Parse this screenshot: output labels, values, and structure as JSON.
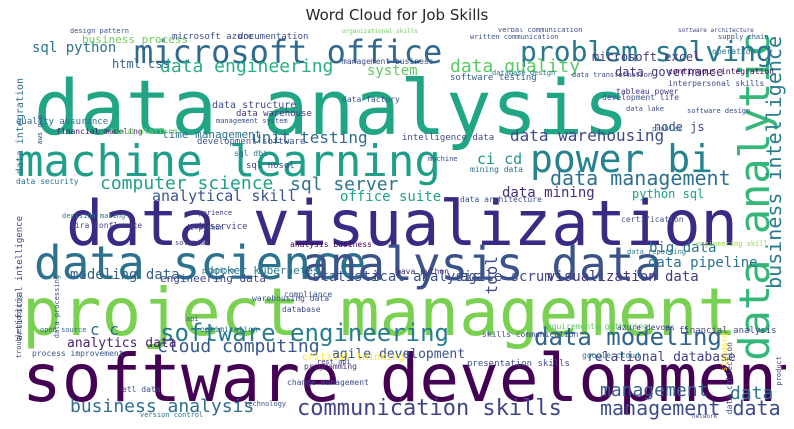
{
  "chart_data": {
    "type": "wordcloud",
    "title": "Word Cloud for Job Skills",
    "words": [
      {
        "text": "data analysis",
        "color": "#21a685"
      },
      {
        "text": "project management",
        "color": "#7ad151"
      },
      {
        "text": "software development",
        "color": "#440154"
      },
      {
        "text": "data visualization",
        "color": "#3b2a84"
      },
      {
        "text": "machine learning",
        "color": "#1f9e89"
      },
      {
        "text": "data science",
        "color": "#2c728e"
      },
      {
        "text": "analysis data",
        "color": "#3b528b"
      },
      {
        "text": "microsoft office",
        "color": "#31688e"
      },
      {
        "text": "power bi",
        "color": "#26828e"
      },
      {
        "text": "data analytic",
        "color": "#35b779"
      },
      {
        "text": "business intelligence",
        "color": "#287d8e"
      },
      {
        "text": "problem solving",
        "color": "#2a788e"
      },
      {
        "text": "software engineering",
        "color": "#287c8e"
      },
      {
        "text": "data modeling",
        "color": "#32648e"
      },
      {
        "text": "communication skills",
        "color": "#404588"
      },
      {
        "text": "data management",
        "color": "#2d708e"
      },
      {
        "text": "data engineering",
        "color": "#29af7f"
      },
      {
        "text": "computer science",
        "color": "#1fa188"
      },
      {
        "text": "sql server",
        "color": "#2b748e"
      },
      {
        "text": "business analysis",
        "color": "#2e6e8e"
      },
      {
        "text": "cloud computing",
        "color": "#38588c"
      },
      {
        "text": "management data",
        "color": "#3e4c8a"
      },
      {
        "text": "data quality",
        "color": "#5cc863"
      },
      {
        "text": "data warehousing",
        "color": "#3e4a89"
      },
      {
        "text": "unit testing",
        "color": "#2f6b8e"
      },
      {
        "text": "analytical skill",
        "color": "#3a548c"
      },
      {
        "text": "ci cd",
        "color": "#1f958b"
      },
      {
        "text": "data mining",
        "color": "#472d7b"
      },
      {
        "text": "office suite",
        "color": "#20a386"
      },
      {
        "text": "big data",
        "color": "#2a788e"
      },
      {
        "text": "data pipeline",
        "color": "#2c718e"
      },
      {
        "text": "modeling data",
        "color": "#33628d"
      },
      {
        "text": "statistical analysis",
        "color": "#3b528b"
      },
      {
        "text": "agile scrum",
        "color": "#3f4889"
      },
      {
        "text": "visualization data",
        "color": "#443a83"
      },
      {
        "text": "sql python",
        "color": "#2c728e"
      },
      {
        "text": "data governance",
        "color": "#46337f"
      },
      {
        "text": "data structure",
        "color": "#3e4989"
      },
      {
        "text": "docker kubernetes",
        "color": "#2a788e"
      },
      {
        "text": "python sql",
        "color": "#1fa088"
      },
      {
        "text": "relational database",
        "color": "#424186"
      },
      {
        "text": "agile development",
        "color": "#3b528b"
      },
      {
        "text": "analytics data",
        "color": "#481f70"
      },
      {
        "text": "c c",
        "color": "#2e6f8e"
      },
      {
        "text": "tool",
        "color": "#3d4d8a"
      },
      {
        "text": "node js",
        "color": "#3e4a89"
      },
      {
        "text": "html css",
        "color": "#33638d"
      },
      {
        "text": "time management",
        "color": "#2c738e"
      },
      {
        "text": "system",
        "color": "#5ec962"
      },
      {
        "text": "microsoft excel",
        "color": "#443983"
      },
      {
        "text": "engineering data",
        "color": "#3e4a89"
      },
      {
        "text": "management",
        "color": "#365c8d"
      },
      {
        "text": "data",
        "color": "#2a768e"
      },
      {
        "text": "business process",
        "color": "#6ccd5a"
      },
      {
        "text": "data integration",
        "color": "#2e6f8e"
      },
      {
        "text": "microsoft azure",
        "color": "#3d4e8a"
      },
      {
        "text": "documentation",
        "color": "#3e4c8a"
      },
      {
        "text": "quality assurance",
        "color": "#2d708e"
      },
      {
        "text": "sql nosql",
        "color": "#404688"
      },
      {
        "text": "web service",
        "color": "#433e85"
      },
      {
        "text": "data factory",
        "color": "#3a548c"
      },
      {
        "text": "data warehouse",
        "color": "#443983"
      },
      {
        "text": "jira confluence",
        "color": "#404588"
      },
      {
        "text": "artificial intelligence",
        "color": "#3f4788"
      },
      {
        "text": "sql dbi",
        "color": "#2c718e"
      },
      {
        "text": "software testing",
        "color": "#365d8d"
      },
      {
        "text": "development software",
        "color": "#3a548c"
      },
      {
        "text": "financial modeling",
        "color": "#48186a"
      },
      {
        "text": "financial analysis",
        "color": "#414487"
      },
      {
        "text": "intelligence data",
        "color": "#3e4a89"
      },
      {
        "text": "data architecture",
        "color": "#3b528b"
      },
      {
        "text": "data security",
        "color": "#2a778e"
      },
      {
        "text": "cloud platform",
        "color": "#6ccd5a"
      },
      {
        "text": "mining data",
        "color": "#2c728e"
      },
      {
        "text": "analysis business",
        "color": "#440154"
      },
      {
        "text": "java python",
        "color": "#482475"
      },
      {
        "text": "engineering skill",
        "color": "#95d840"
      },
      {
        "text": "compliance",
        "color": "#3b528b"
      },
      {
        "text": "database",
        "color": "#3e4a89"
      },
      {
        "text": "optimization",
        "color": "#2c728e"
      },
      {
        "text": "warehousing data",
        "color": "#3b528b"
      },
      {
        "text": "critical thinking",
        "color": "#fde725"
      },
      {
        "text": "presentation skills",
        "color": "#3e4c8a"
      },
      {
        "text": "requirements gathering",
        "color": "#5ec962"
      },
      {
        "text": "skills communication",
        "color": "#3b528b"
      },
      {
        "text": "azure devops",
        "color": "#433e85"
      },
      {
        "text": "google cloud",
        "color": "#2a788e"
      },
      {
        "text": "process improvement",
        "color": "#3b528b"
      },
      {
        "text": "open source",
        "color": "#31688e"
      },
      {
        "text": "programming",
        "color": "#472d7b"
      },
      {
        "text": "change management",
        "color": "#3e4c8a"
      },
      {
        "text": "rest api",
        "color": "#443983"
      },
      {
        "text": "technology",
        "color": "#3b528b"
      },
      {
        "text": "version control",
        "color": "#2c728e"
      },
      {
        "text": "software design",
        "color": "#3e4a89"
      },
      {
        "text": "tableau power",
        "color": "#443983"
      },
      {
        "text": "data transformation",
        "color": "#3e4c8a"
      },
      {
        "text": "continuous integration",
        "color": "#440154"
      },
      {
        "text": "interpersonal skills",
        "color": "#3e4a89"
      },
      {
        "text": "operation",
        "color": "#2c728e"
      },
      {
        "text": "supply chain",
        "color": "#3b528b"
      },
      {
        "text": "software architecture",
        "color": "#404588"
      },
      {
        "text": "verbal communication",
        "color": "#3e4c8a"
      },
      {
        "text": "written communication",
        "color": "#3b528b"
      },
      {
        "text": "organizational skills",
        "color": "#6ccd5a"
      },
      {
        "text": "management business",
        "color": "#3e4a89"
      },
      {
        "text": "database design",
        "color": "#2a788e"
      },
      {
        "text": "development life",
        "color": "#3b528b"
      },
      {
        "text": "c python",
        "color": "#3e4c8a"
      },
      {
        "text": "experience",
        "color": "#433e85"
      },
      {
        "text": "certification",
        "color": "#3b528b"
      },
      {
        "text": "solution",
        "color": "#3e4a89"
      },
      {
        "text": "platform",
        "color": "#2c728e"
      },
      {
        "text": "management system",
        "color": "#3b528b"
      },
      {
        "text": "data lake",
        "color": "#3e4c8a"
      },
      {
        "text": "problem",
        "color": "#2a788e"
      },
      {
        "text": "support",
        "color": "#3b528b"
      },
      {
        "text": "data collection",
        "color": "#3e4a89"
      },
      {
        "text": "standard",
        "color": "#fde725"
      },
      {
        "text": "troubleshooting",
        "color": "#3e4c8a"
      },
      {
        "text": "data processing",
        "color": "#3b528b"
      },
      {
        "text": "decision making",
        "color": "#2c728e"
      },
      {
        "text": "etl data",
        "color": "#3e4a89"
      },
      {
        "text": "api",
        "color": "#3b528b"
      },
      {
        "text": "product",
        "color": "#433e85"
      },
      {
        "text": "aws gcp",
        "color": "#3b528b"
      },
      {
        "text": "machine",
        "color": "#3e4c8a"
      },
      {
        "text": "data reporting",
        "color": "#2a788e"
      },
      {
        "text": "design pattern",
        "color": "#3b528b"
      },
      {
        "text": "network",
        "color": "#3e4a89"
      }
    ]
  }
}
